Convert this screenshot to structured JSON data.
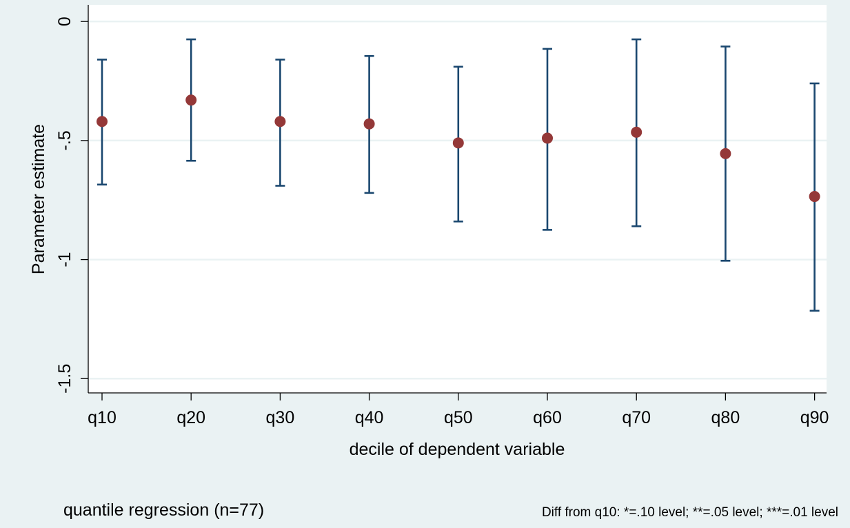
{
  "chart_data": {
    "type": "scatter",
    "xlabel": "decile of dependent variable",
    "ylabel": "Parameter estimate",
    "categories": [
      "q10",
      "q20",
      "q30",
      "q40",
      "q50",
      "q60",
      "q70",
      "q80",
      "q90"
    ],
    "values": [
      -0.42,
      -0.33,
      -0.42,
      -0.43,
      -0.51,
      -0.49,
      -0.465,
      -0.555,
      -0.735
    ],
    "ci_lower": [
      -0.685,
      -0.585,
      -0.69,
      -0.72,
      -0.84,
      -0.875,
      -0.86,
      -1.005,
      -1.215
    ],
    "ci_upper": [
      -0.16,
      -0.075,
      -0.16,
      -0.145,
      -0.19,
      -0.115,
      -0.075,
      -0.105,
      -0.26
    ],
    "y_ticks": [
      0,
      -0.5,
      -1,
      -1.5
    ],
    "y_tick_labels": [
      "0",
      "-.5",
      "-1",
      "-1.5"
    ],
    "ylim": [
      -1.56,
      0.07
    ],
    "grid": true,
    "colors": {
      "point": "#943838",
      "error_bar": "#1a476f",
      "grid": "#eaf2f3",
      "plot_bg": "#ffffff",
      "page_bg": "#eaf2f3"
    }
  },
  "notes": {
    "left": "quantile regression (n=77)",
    "right": "Diff from q10:  *=.10 level; **=.05 level; ***=.01 level"
  }
}
